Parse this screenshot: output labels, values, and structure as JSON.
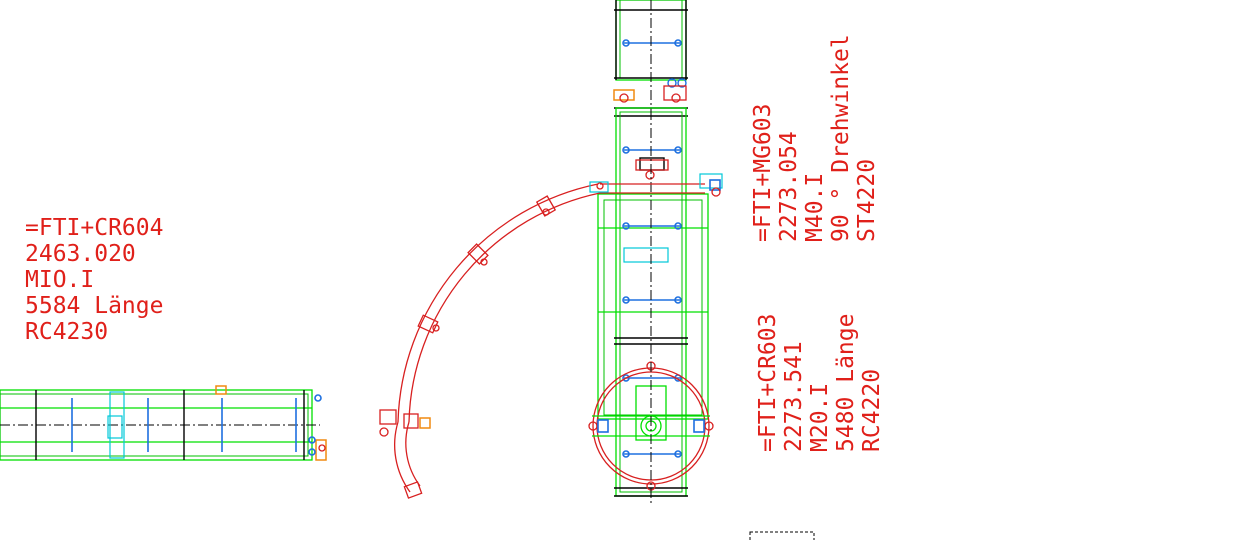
{
  "labels": {
    "cr604": [
      "=FTI+CR604",
      "2463.020",
      "MIO.I",
      "5584 Länge",
      "RC4230"
    ],
    "mg603": [
      "=FTI+MG603",
      "2273.054",
      "M40.I",
      "90 ° Drehwinkel",
      "ST4220"
    ],
    "cr603": [
      "=FTI+CR603",
      "2273.541",
      "M20.I",
      "5480 Länge",
      "RC4220"
    ]
  },
  "colors": {
    "text": "#e0201a",
    "frame": "#00e000",
    "rollers": "#1e70e0",
    "curve": "#d82020",
    "accent": "#f08a10",
    "cyan": "#00c8d8"
  }
}
